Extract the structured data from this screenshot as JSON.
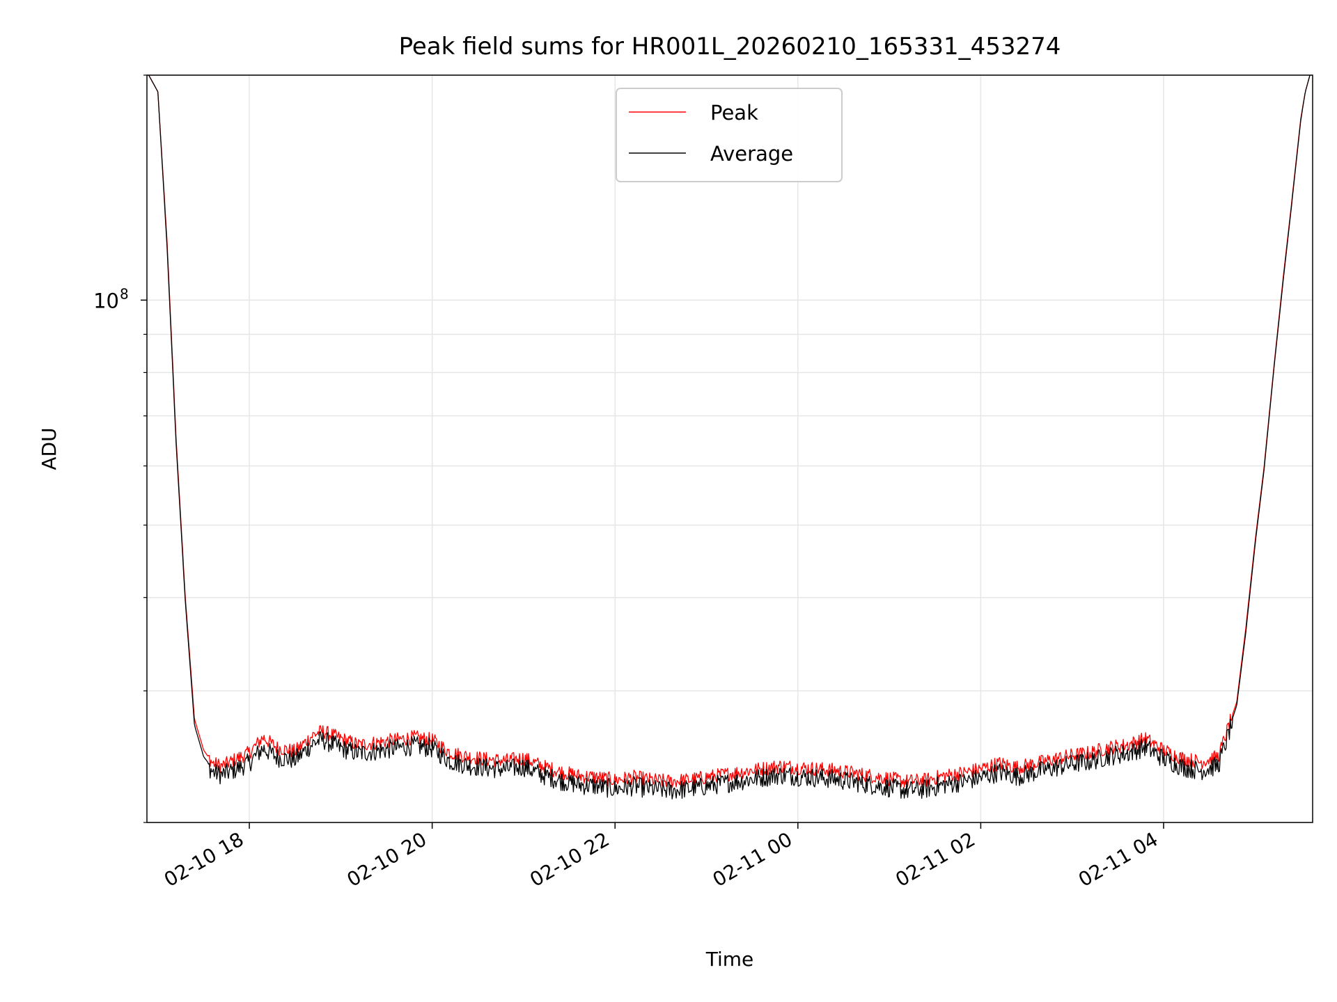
{
  "chart_data": {
    "type": "line",
    "title": "Peak field sums for HR001L_20260210_165331_453274",
    "xlabel": "Time",
    "ylabel": "ADU",
    "yscale": "log",
    "grid": true,
    "legend_placement": "upper-center",
    "xlim_hours": [
      16.88,
      29.63
    ],
    "ylim": [
      20000000,
      200000000
    ],
    "x_ticks": [
      {
        "label": "02-10 18",
        "hours": 18
      },
      {
        "label": "02-10 20",
        "hours": 20
      },
      {
        "label": "02-10 22",
        "hours": 22
      },
      {
        "label": "02-11 00",
        "hours": 24
      },
      {
        "label": "02-11 02",
        "hours": 26
      },
      {
        "label": "02-11 04",
        "hours": 28
      }
    ],
    "y_major_ticks": [
      {
        "base": "10",
        "exponent": "8",
        "value": 100000000
      }
    ],
    "y_minor_ticks": [
      20000000,
      30000000,
      40000000,
      50000000,
      60000000,
      70000000,
      80000000,
      90000000,
      200000000
    ],
    "colors": {
      "peak": "#ff0000",
      "average": "#000000",
      "grid": "#e6e6e6"
    },
    "series": [
      {
        "name": "Peak",
        "color": "#ff0000",
        "x_hours": [
          16.9,
          17.0,
          17.1,
          17.2,
          17.3,
          17.4,
          17.5,
          17.6,
          17.7,
          17.85,
          18.0,
          18.15,
          18.3,
          18.5,
          18.7,
          18.8,
          19.0,
          19.2,
          19.4,
          19.6,
          19.8,
          20.0,
          20.2,
          20.4,
          20.6,
          20.8,
          21.0,
          21.2,
          21.4,
          21.6,
          21.8,
          22.0,
          22.2,
          22.4,
          22.6,
          22.8,
          23.0,
          23.2,
          23.4,
          23.6,
          23.8,
          24.0,
          24.2,
          24.4,
          24.6,
          24.8,
          25.0,
          25.2,
          25.4,
          25.6,
          25.8,
          26.0,
          26.2,
          26.4,
          26.6,
          26.8,
          27.0,
          27.2,
          27.4,
          27.6,
          27.8,
          28.0,
          28.2,
          28.4,
          28.6,
          28.8,
          28.9,
          29.0,
          29.1,
          29.2,
          29.3,
          29.4,
          29.5,
          29.55,
          29.6
        ],
        "values": [
          200000000,
          190000000,
          120000000,
          65000000,
          40000000,
          27500000,
          25000000,
          24000000,
          23800000,
          24300000,
          24800000,
          26000000,
          25200000,
          24900000,
          26200000,
          26500000,
          25900000,
          25400000,
          25600000,
          25800000,
          26000000,
          25800000,
          24800000,
          24500000,
          24300000,
          24200000,
          24400000,
          23800000,
          23400000,
          23100000,
          23000000,
          22800000,
          23000000,
          22800000,
          22700000,
          22800000,
          23000000,
          23200000,
          23400000,
          23600000,
          23800000,
          23700000,
          23600000,
          23500000,
          23300000,
          23100000,
          22900000,
          22700000,
          22800000,
          23100000,
          23300000,
          23600000,
          24000000,
          23700000,
          24000000,
          24300000,
          24600000,
          24800000,
          25200000,
          25400000,
          25900000,
          25000000,
          24400000,
          24100000,
          24500000,
          29000000,
          36500000,
          47500000,
          60000000,
          80000000,
          105000000,
          135000000,
          175000000,
          190000000,
          200000000
        ]
      },
      {
        "name": "Average",
        "color": "#000000",
        "x_hours": [
          16.9,
          17.0,
          17.1,
          17.2,
          17.3,
          17.4,
          17.5,
          17.6,
          17.7,
          17.85,
          18.0,
          18.15,
          18.3,
          18.5,
          18.7,
          18.8,
          19.0,
          19.2,
          19.4,
          19.6,
          19.8,
          20.0,
          20.2,
          20.4,
          20.6,
          20.8,
          21.0,
          21.2,
          21.4,
          21.6,
          21.8,
          22.0,
          22.2,
          22.4,
          22.6,
          22.8,
          23.0,
          23.2,
          23.4,
          23.6,
          23.8,
          24.0,
          24.2,
          24.4,
          24.6,
          24.8,
          25.0,
          25.2,
          25.4,
          25.6,
          25.8,
          26.0,
          26.2,
          26.4,
          26.6,
          26.8,
          27.0,
          27.2,
          27.4,
          27.6,
          27.8,
          28.0,
          28.2,
          28.4,
          28.6,
          28.8,
          28.9,
          29.0,
          29.1,
          29.2,
          29.3,
          29.4,
          29.5,
          29.55,
          29.6
        ],
        "values": [
          200000000,
          190000000,
          118000000,
          64000000,
          39500000,
          27000000,
          24500000,
          23600000,
          23400000,
          23800000,
          24300000,
          25400000,
          24700000,
          24500000,
          25800000,
          26100000,
          25400000,
          25000000,
          25200000,
          25400000,
          25600000,
          25400000,
          24400000,
          24100000,
          23900000,
          23800000,
          24000000,
          23400000,
          23000000,
          22700000,
          22600000,
          22400000,
          22600000,
          22400000,
          22300000,
          22400000,
          22600000,
          22800000,
          23000000,
          23200000,
          23400000,
          23300000,
          23200000,
          23100000,
          22900000,
          22700000,
          22500000,
          22300000,
          22400000,
          22700000,
          22900000,
          23200000,
          23600000,
          23300000,
          23600000,
          23900000,
          24200000,
          24400000,
          24800000,
          25000000,
          25500000,
          24600000,
          24000000,
          23700000,
          24100000,
          28700000,
          36000000,
          47000000,
          59500000,
          79500000,
          104000000,
          134000000,
          174000000,
          190000000,
          200000000
        ]
      }
    ]
  }
}
